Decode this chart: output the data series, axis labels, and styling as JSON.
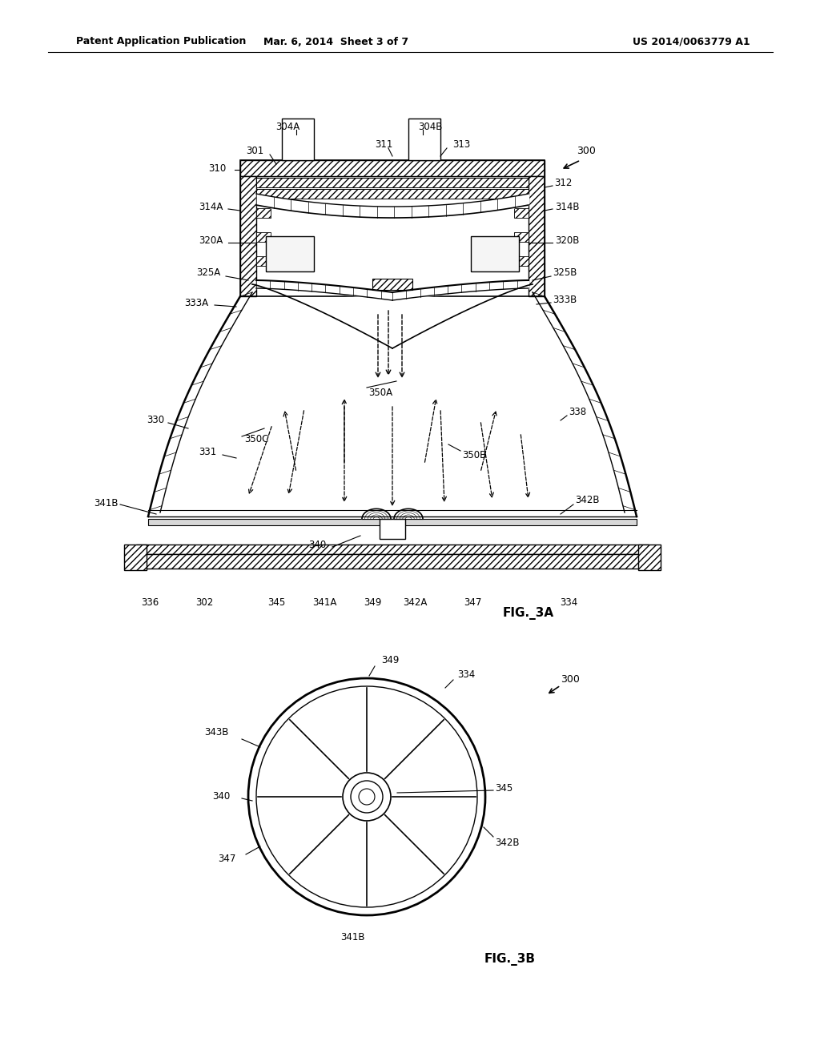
{
  "bg_color": "#ffffff",
  "line_color": "#000000",
  "header": {
    "left": "Patent Application Publication",
    "center": "Mar. 6, 2014  Sheet 3 of 7",
    "right": "US 2014/0063779 A1"
  }
}
